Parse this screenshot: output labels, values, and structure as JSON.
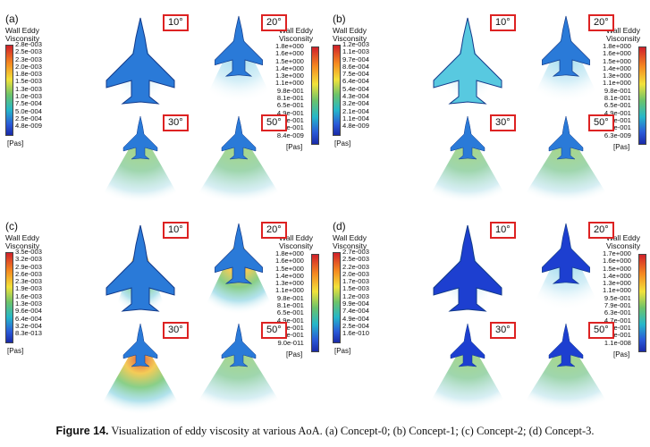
{
  "colorbar_title_1": "Wall Eddy",
  "colorbar_title_2": "Visconsity",
  "unit": "[Pas]",
  "aoa": [
    "10°",
    "20°",
    "30°",
    "50°"
  ],
  "panels": [
    {
      "label": "(a)",
      "cb_left": [
        "2.8e-003",
        "2.5e-003",
        "2.3e-003",
        "2.0e-003",
        "1.8e-003",
        "1.5e-003",
        "1.3e-003",
        "1.0e-003",
        "7.5e-004",
        "5.0e-004",
        "2.5e-004",
        "4.8e-009"
      ],
      "cb_right": [
        "1.8e+000",
        "1.6e+000",
        "1.5e+000",
        "1.4e+000",
        "1.3e+000",
        "1.1e+000",
        "9.8e-001",
        "8.1e-001",
        "6.5e-001",
        "4.9e-001",
        "3.3e-001",
        "1.6e-001",
        "8.4e-009"
      ]
    },
    {
      "label": "(b)",
      "cb_left": [
        "1.2e-003",
        "1.1e-003",
        "9.7e-004",
        "8.6e-004",
        "7.5e-004",
        "6.4e-004",
        "5.4e-004",
        "4.3e-004",
        "3.2e-004",
        "2.1e-004",
        "1.1e-004",
        "4.8e-009"
      ],
      "cb_right": [
        "1.8e+000",
        "1.6e+000",
        "1.5e+000",
        "1.4e+000",
        "1.3e+000",
        "1.1e+000",
        "9.8e-001",
        "8.1e-001",
        "6.5e-001",
        "4.9e-001",
        "3.3e-001",
        "1.6e-001",
        "6.3e-009"
      ]
    },
    {
      "label": "(c)",
      "cb_left": [
        "3.5e-003",
        "3.2e-003",
        "2.9e-003",
        "2.6e-003",
        "2.3e-003",
        "1.9e-003",
        "1.6e-003",
        "1.3e-003",
        "9.6e-004",
        "6.4e-004",
        "3.2e-004",
        "8.3e-013"
      ],
      "cb_right": [
        "1.8e+000",
        "1.6e+000",
        "1.5e+000",
        "1.4e+000",
        "1.3e+000",
        "1.1e+000",
        "9.8e-001",
        "8.1e-001",
        "6.5e-001",
        "4.9e-001",
        "3.3e-001",
        "1.6e-001",
        "9.0e-011"
      ]
    },
    {
      "label": "(d)",
      "cb_left": [
        "2.7e-003",
        "2.5e-003",
        "2.2e-003",
        "2.0e-003",
        "1.7e-003",
        "1.5e-003",
        "1.2e-003",
        "9.9e-004",
        "7.4e-004",
        "4.9e-004",
        "2.5e-004",
        "1.6e-010"
      ],
      "cb_right": [
        "1.7e+000",
        "1.6e+000",
        "1.5e+000",
        "1.4e+000",
        "1.3e+000",
        "1.1e+000",
        "9.5e-001",
        "7.9e-001",
        "6.3e-001",
        "4.7e-001",
        "3.2e-001",
        "1.6e-001",
        "1.1e-008"
      ]
    }
  ],
  "caption_label": "Figure 14.",
  "caption_text": " Visualization of eddy viscosity at various AoA. (a) Concept-0; (b) Concept-1; (c) Concept-2; (d) Concept-3."
}
